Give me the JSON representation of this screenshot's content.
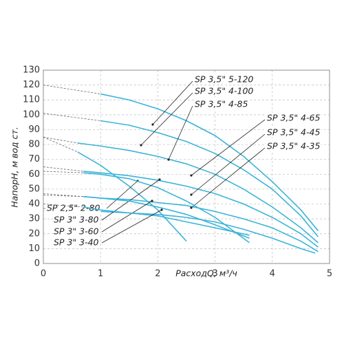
{
  "chart_data": {
    "type": "line",
    "x_label": "РасходQ, м³/ч",
    "y_label": "НапорH, м вод ст.",
    "xlim": [
      0,
      5
    ],
    "xticks": [
      0,
      1,
      2,
      3,
      4,
      5
    ],
    "ylim": [
      0,
      130
    ],
    "yticks": [
      0,
      10,
      20,
      30,
      40,
      50,
      60,
      70,
      80,
      90,
      100,
      110,
      120,
      130
    ],
    "grid": true,
    "series": [
      {
        "name": "SP 3,5\" 5-120",
        "color": "#3ab4d8",
        "x": [
          1,
          1.5,
          2,
          2.5,
          3,
          3.5,
          4,
          4.5,
          4.8
        ],
        "values": [
          114,
          110,
          104,
          96,
          86,
          72,
          55,
          36,
          22
        ],
        "extrapolated": {
          "x": [
            0,
            1
          ],
          "values": [
            120,
            114
          ]
        }
      },
      {
        "name": "SP 3,5\" 4-100",
        "color": "#3ab4d8",
        "x": [
          1,
          1.5,
          2,
          2.5,
          3,
          3.5,
          4,
          4.5,
          4.8
        ],
        "values": [
          96,
          93,
          88,
          82,
          74,
          63,
          50,
          32,
          18
        ],
        "extrapolated": {
          "x": [
            0,
            1
          ],
          "values": [
            101,
            96
          ]
        }
      },
      {
        "name": "SP 3,5\" 4-85",
        "color": "#3ab4d8",
        "x": [
          0.6,
          1,
          1.5,
          2,
          2.5,
          3,
          3.5,
          4,
          4.5,
          4.8
        ],
        "values": [
          81,
          79,
          76,
          72,
          67,
          60,
          50,
          38,
          24,
          14
        ],
        "extrapolated": {
          "x": [
            0,
            0.6
          ],
          "values": [
            85,
            81
          ]
        }
      },
      {
        "name": "SP 3,5\" 4-65",
        "color": "#3ab4d8",
        "x": [
          0.7,
          1,
          1.5,
          2,
          2.5,
          3,
          3.5,
          4,
          4.5,
          4.8
        ],
        "values": [
          62,
          61,
          59,
          56,
          52,
          47,
          40,
          31,
          20,
          11
        ],
        "extrapolated": {
          "x": [
            0,
            0.7
          ],
          "values": [
            65,
            62
          ]
        }
      },
      {
        "name": "SP 3,5\" 4-45",
        "color": "#3ab4d8",
        "x": [
          0.7,
          1,
          1.5,
          2,
          2.5,
          3,
          3.5,
          4,
          4.5,
          4.8
        ],
        "values": [
          45,
          44,
          43,
          41,
          39,
          35,
          30,
          24,
          15,
          8
        ],
        "extrapolated": {
          "x": [
            0,
            0.7
          ],
          "values": [
            47,
            45
          ]
        }
      },
      {
        "name": "SP 3,5\" 4-35",
        "color": "#3ab4d8",
        "x": [
          0.7,
          1,
          1.5,
          2,
          2.5,
          3,
          3.5,
          4,
          4.5,
          4.75
        ],
        "values": [
          36,
          35,
          34,
          33,
          31,
          28,
          23,
          17,
          10,
          7
        ],
        "extrapolated": {
          "x": [
            0,
            0.7
          ],
          "values": [
            37,
            36
          ]
        }
      },
      {
        "name": "SP 2,5\" 2-80",
        "color": "#3ab4d8",
        "x": [
          0.6,
          1,
          1.5,
          2,
          2.5
        ],
        "values": [
          75,
          66,
          52,
          36,
          15
        ],
        "extrapolated": {
          "x": [
            0,
            0.6
          ],
          "values": [
            85,
            75
          ]
        }
      },
      {
        "name": "SP 3\" 3-80",
        "color": "#3ab4d8",
        "x": [
          0.7,
          1,
          1.5,
          2,
          2.5,
          3,
          3.6
        ],
        "values": [
          61,
          60,
          57,
          51,
          42,
          31,
          14
        ],
        "extrapolated": {
          "x": [
            0,
            0.7
          ],
          "values": [
            62,
            61
          ]
        }
      },
      {
        "name": "SP 3\" 3-60",
        "color": "#3ab4d8",
        "x": [
          0.7,
          1,
          1.5,
          2,
          2.5,
          3,
          3.6
        ],
        "values": [
          45,
          44,
          42,
          38,
          33,
          26,
          17
        ],
        "extrapolated": {
          "x": [
            0,
            0.7
          ],
          "values": [
            46,
            45
          ]
        }
      },
      {
        "name": "SP 3\" 3-40",
        "color": "#3ab4d8",
        "x": [
          0.7,
          1,
          1.5,
          2,
          2.5,
          3,
          3.6
        ],
        "values": [
          38,
          36,
          34,
          32,
          28,
          24,
          19
        ],
        "extrapolated": {
          "x": [
            0,
            0.7
          ],
          "values": [
            40,
            38
          ]
        }
      }
    ]
  }
}
